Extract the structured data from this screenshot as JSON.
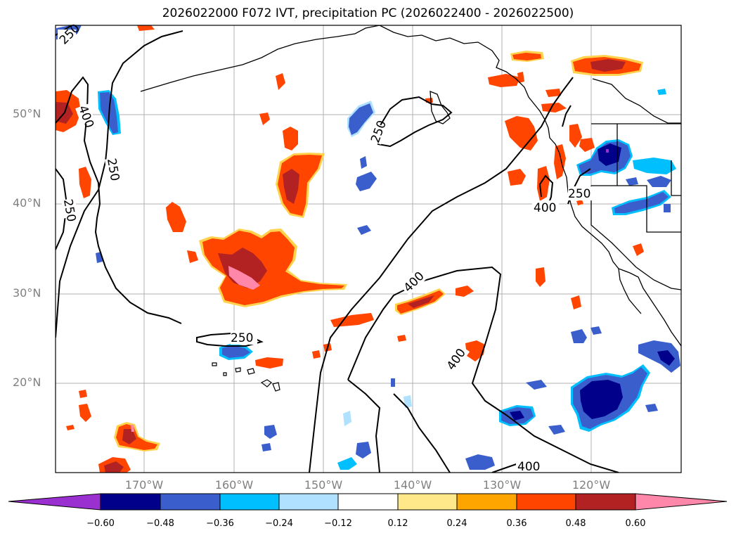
{
  "title": "2026022000 F072 IVT, precipitation PC (2026022400 - 2026022500)",
  "map": {
    "lat_labels": [
      "50°N",
      "40°N",
      "30°N",
      "20°N"
    ],
    "lon_labels": [
      "170°W",
      "160°W",
      "150°W",
      "140°W",
      "130°W",
      "120°W"
    ],
    "contour_labels": [
      "250",
      "400",
      "250",
      "250",
      "250",
      "250",
      "400",
      "400",
      "250",
      "400",
      "400"
    ]
  },
  "colorbar": {
    "ticks": [
      "−0.60",
      "−0.48",
      "−0.36",
      "−0.24",
      "−0.12",
      "0.12",
      "0.24",
      "0.36",
      "0.48",
      "0.60"
    ],
    "colors": [
      "#9b30d0",
      "#00008b",
      "#3a5fcd",
      "#00bfff",
      "#b0e2ff",
      "#ffffff",
      "#ffe88a",
      "#ffa500",
      "#ff4500",
      "#b22222",
      "#ff88aa"
    ]
  }
}
